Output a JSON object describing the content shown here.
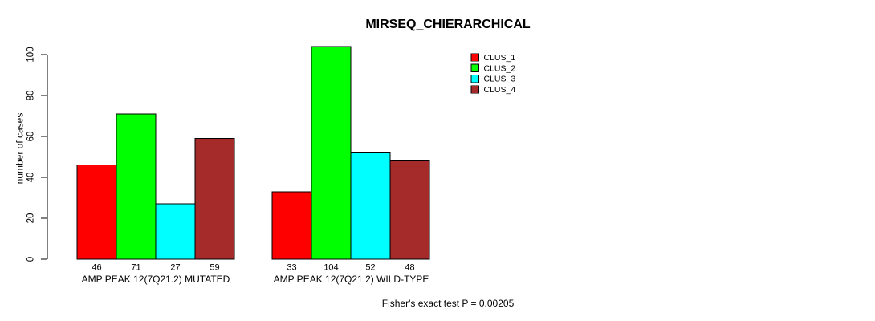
{
  "page": {
    "background_color": "#FFFFFF"
  },
  "chart_data": {
    "type": "bar",
    "title": "MIRSEQ_CHIERARCHICAL",
    "ylabel": "number of cases",
    "xlabel": "",
    "ylim": [
      0,
      110
    ],
    "yticks": [
      0,
      20,
      40,
      60,
      80,
      100
    ],
    "categories": [
      "AMP PEAK 12(7Q21.2) MUTATED",
      "AMP PEAK 12(7Q21.2) WILD-TYPE"
    ],
    "series": [
      {
        "name": "CLUS_1",
        "color": "#FF0000",
        "values": [
          46,
          33
        ]
      },
      {
        "name": "CLUS_2",
        "color": "#00FF00",
        "values": [
          71,
          104
        ]
      },
      {
        "name": "CLUS_3",
        "color": "#00FFFF",
        "values": [
          27,
          52
        ]
      },
      {
        "name": "CLUS_4",
        "color": "#A52A2A",
        "values": [
          59,
          48
        ]
      }
    ],
    "bar_outline_color": "#000000",
    "show_values_under_bars": true,
    "grid": false,
    "legend": {
      "position": "top-right",
      "entries": [
        "CLUS_1",
        "CLUS_2",
        "CLUS_3",
        "CLUS_4"
      ]
    },
    "annotation": "Fisher's exact test P = 0.00205"
  }
}
